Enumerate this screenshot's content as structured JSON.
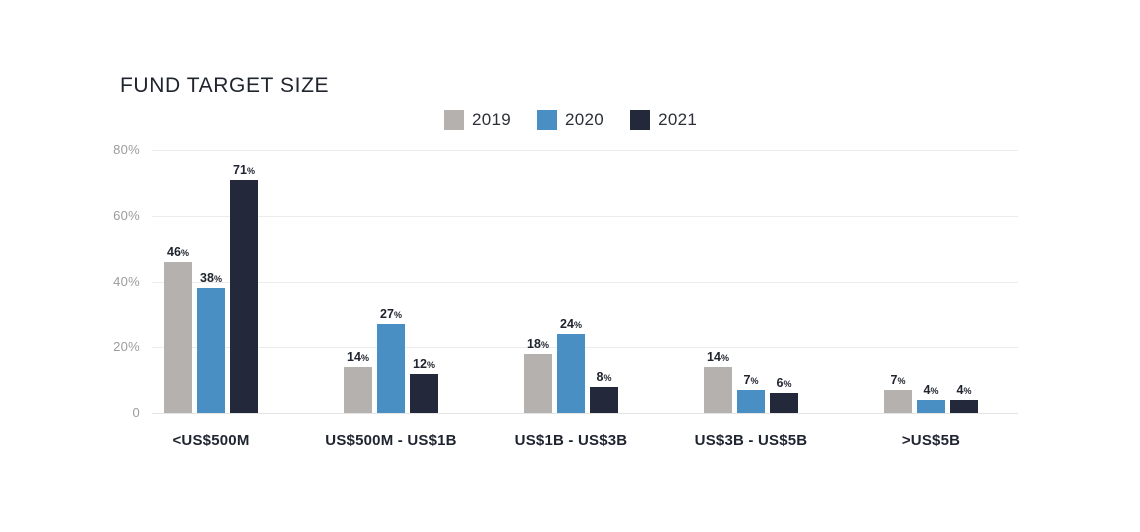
{
  "title": "FUND TARGET SIZE",
  "chart_data": {
    "type": "bar",
    "title": "FUND TARGET SIZE",
    "categories": [
      "<US$500M",
      "US$500M - US$1B",
      "US$1B - US$3B",
      "US$3B - US$5B",
      ">US$5B"
    ],
    "series": [
      {
        "name": "2019",
        "color": "#b4b1ae",
        "values": [
          46,
          14,
          18,
          14,
          7
        ]
      },
      {
        "name": "2020",
        "color": "#4a8fc3",
        "values": [
          38,
          27,
          24,
          7,
          4
        ]
      },
      {
        "name": "2021",
        "color": "#23293a",
        "values": [
          71,
          12,
          8,
          6,
          4
        ]
      }
    ],
    "value_suffix": "%",
    "y_ticks": [
      {
        "value": 80,
        "label": "80%"
      },
      {
        "value": 60,
        "label": "60%"
      },
      {
        "value": 40,
        "label": "40%"
      },
      {
        "value": 20,
        "label": "20%"
      },
      {
        "value": 0,
        "label": "0"
      }
    ],
    "ylim": [
      0,
      80
    ],
    "xlabel": "",
    "ylabel": "",
    "grid": "horizontal",
    "legend_position": "top-center",
    "colors": {
      "background": "#ffffff",
      "gridline": "#ececec",
      "baseline": "#e3e3e3",
      "axis_label": "#9c9c9c",
      "text_dark": "#20242e"
    }
  }
}
